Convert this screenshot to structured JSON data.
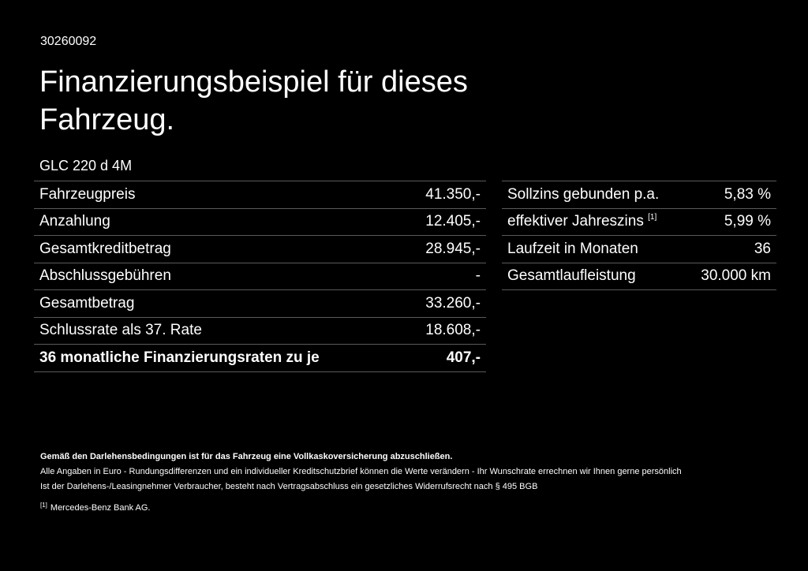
{
  "offer_number": "30260092",
  "title": "Finanzierungsbeispiel für dieses Fahrzeug.",
  "model": "GLC 220 d 4M",
  "left_table": [
    {
      "label": "Fahrzeugpreis",
      "value": "41.350,-"
    },
    {
      "label": "Anzahlung",
      "value": "12.405,-"
    },
    {
      "label": "Gesamtkreditbetrag",
      "value": "28.945,-"
    },
    {
      "label": "Abschlussgebühren",
      "value": "-"
    },
    {
      "label": "Gesamtbetrag",
      "value": "33.260,-"
    },
    {
      "label": "Schlussrate als 37. Rate",
      "value": "18.608,-"
    },
    {
      "label": "36 monatliche Finanzierungsraten zu je",
      "value": "407,-"
    }
  ],
  "right_table": [
    {
      "label": "Sollzins gebunden p.a.",
      "value": "5,83 %"
    },
    {
      "label": "effektiver Jahreszins",
      "sup": "[1]",
      "value": "5,99 %"
    },
    {
      "label": "Laufzeit in Monaten",
      "value": "36"
    },
    {
      "label": "Gesamtlaufleistung",
      "value": "30.000 km"
    }
  ],
  "notes": {
    "insurance": "Gemäß den Darlehensbedingungen ist für das Fahrzeug eine Vollkaskoversicherung abzuschließen.",
    "line1": "Alle Angaben in Euro - Rundungsdifferenzen und ein individueller Kreditschutzbrief können die Werte verändern - Ihr Wunschrate errechnen wir Ihnen gerne persönlich",
    "line2": "Ist der Darlehens-/Leasingnehmer Verbraucher, besteht nach Vertragsabschluss ein gesetzliches Widerrufsrecht nach § 495 BGB",
    "footnote_mark": "[1]",
    "footnote": "Mercedes-Benz Bank AG."
  }
}
